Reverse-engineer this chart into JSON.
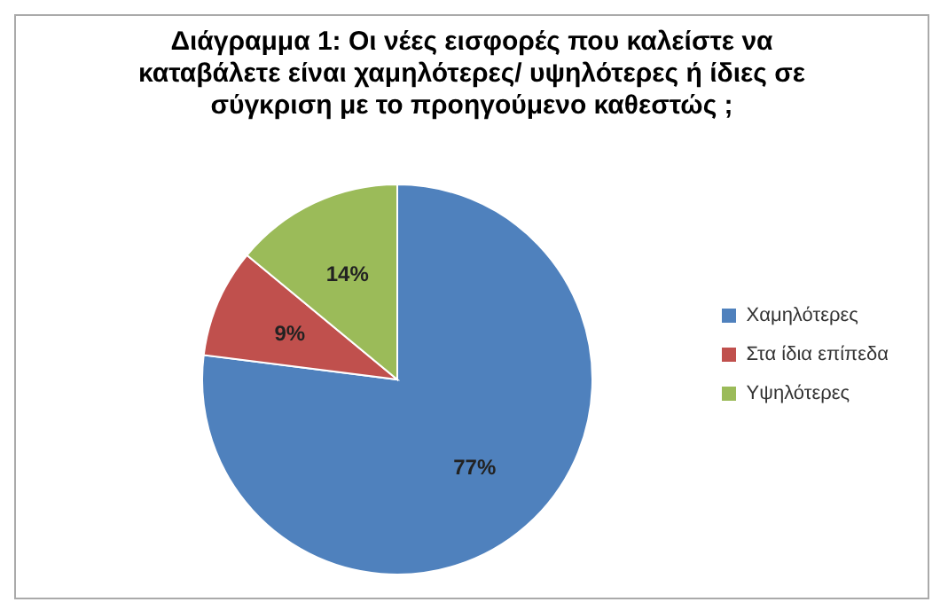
{
  "chart_data": {
    "type": "pie",
    "title": "Διάγραμμα 1: Οι νέες εισφορές που καλείστε να καταβάλετε είναι χαμηλότερες/ υψηλότερες ή ίδιες σε σύγκριση με το προηγούμενο καθεστώς ;",
    "categories": [
      "Χαμηλότερες",
      "Στα ίδια επίπεδα",
      "Υψηλότερες"
    ],
    "values": [
      77,
      9,
      14
    ],
    "colors": [
      "#4f81bd",
      "#c0504d",
      "#9bbb59"
    ],
    "value_labels": [
      "77%",
      "9%",
      "14%"
    ],
    "legend": "right"
  }
}
